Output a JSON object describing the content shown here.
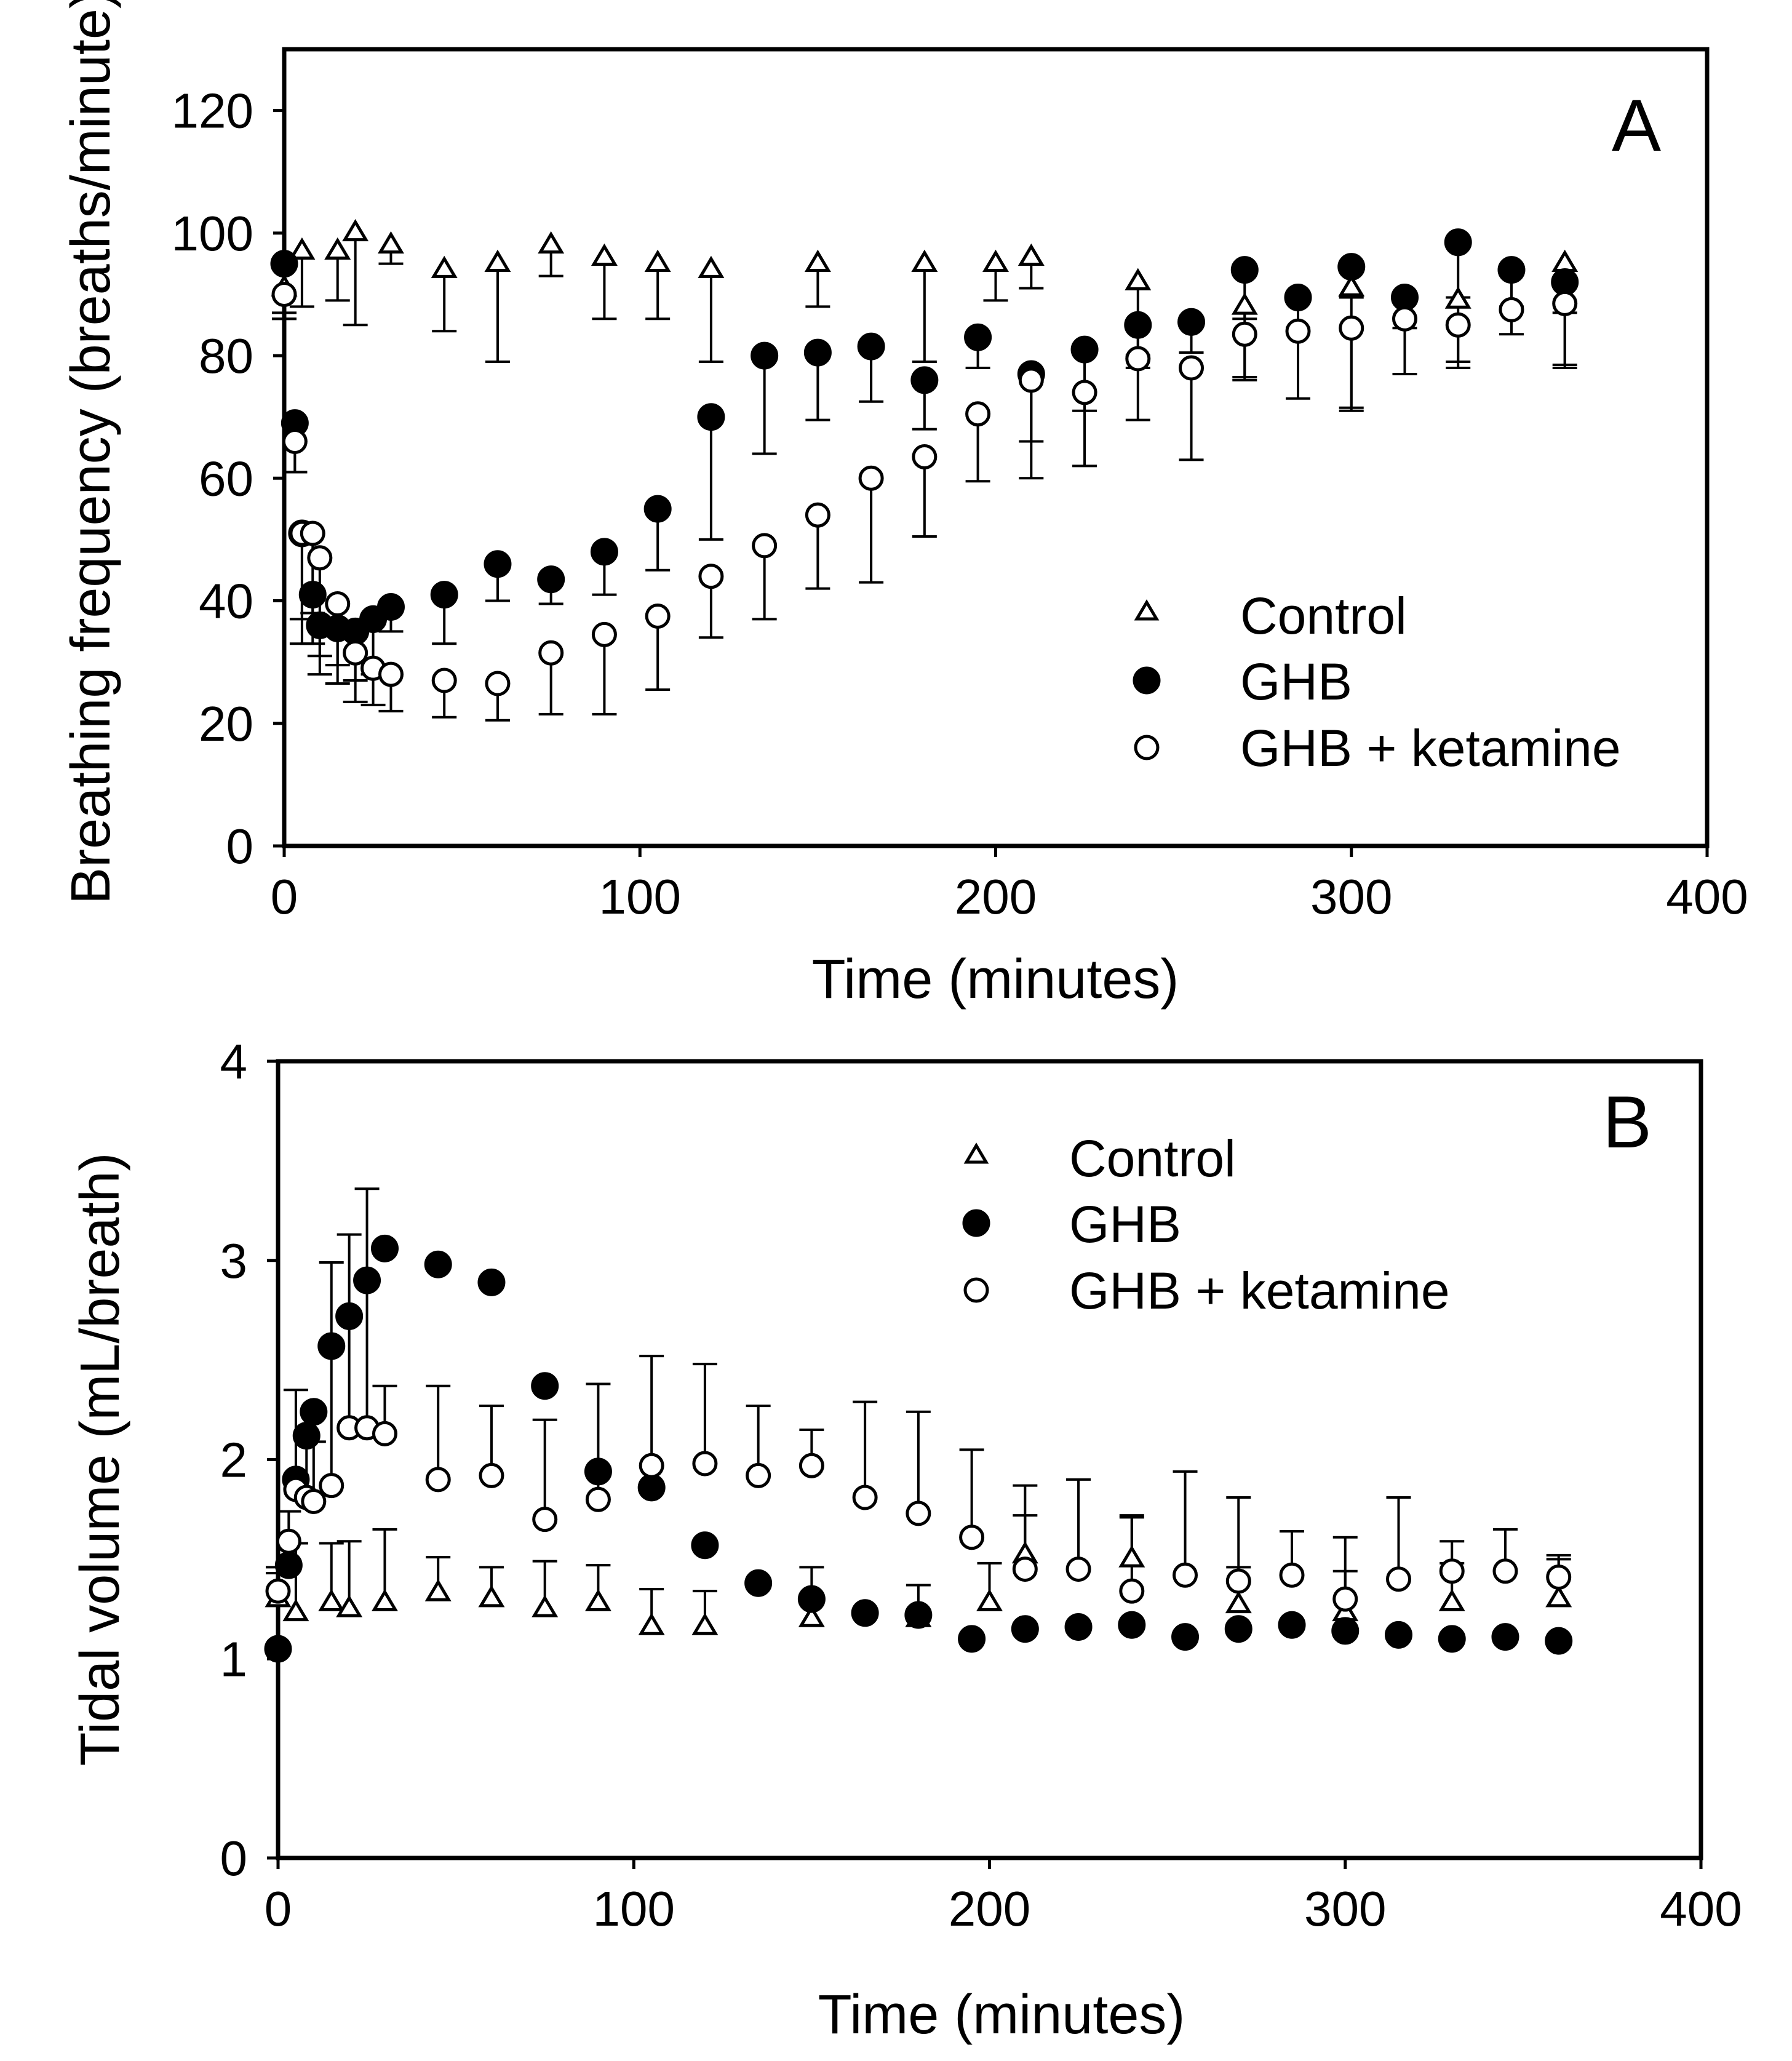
{
  "chart_data": [
    {
      "type": "scatter",
      "panel_label": "A",
      "xlabel": "Time (minutes)",
      "ylabel": "Breathing frequency (breaths/minute)",
      "xlim": [
        0,
        400
      ],
      "ylim": [
        0,
        130
      ],
      "xticks": [
        0,
        100,
        200,
        300,
        400
      ],
      "yticks": [
        0,
        20,
        40,
        60,
        80,
        100,
        120
      ],
      "grid": false,
      "legend_position": "lower-right",
      "series": [
        {
          "name": "Control",
          "marker": "open-triangle",
          "error_dir": "down",
          "x": [
            0,
            5,
            15,
            20,
            30,
            45,
            60,
            75,
            90,
            105,
            120,
            150,
            180,
            200,
            210,
            240,
            270,
            300,
            330,
            360
          ],
          "y": [
            91,
            97,
            97,
            100,
            98,
            94,
            95,
            98,
            96,
            95,
            94,
            95,
            95,
            95,
            96,
            92,
            88,
            91,
            89,
            95
          ],
          "err": [
            5,
            9,
            8,
            15,
            3,
            10,
            16,
            5,
            10,
            9,
            15,
            7,
            16,
            6,
            5,
            14,
            12,
            20,
            11,
            17
          ]
        },
        {
          "name": "GHB",
          "marker": "filled-circle",
          "error_dir": "down",
          "x": [
            0,
            3,
            5,
            8,
            10,
            15,
            20,
            25,
            30,
            45,
            60,
            75,
            90,
            105,
            120,
            135,
            150,
            165,
            180,
            195,
            210,
            225,
            240,
            255,
            270,
            285,
            300,
            315,
            330,
            345,
            360
          ],
          "y": [
            95,
            69,
            51,
            41,
            36,
            35.5,
            35,
            37,
            39,
            41,
            46,
            43.5,
            48,
            55,
            70,
            80,
            80.5,
            81.5,
            76,
            83,
            77,
            81,
            85,
            85.5,
            94,
            89.5,
            94.5,
            89.5,
            98.5,
            94,
            92
          ],
          "err": [
            8,
            8,
            18,
            8,
            8,
            6,
            8,
            9,
            4,
            8,
            6,
            4,
            7,
            10,
            20,
            16,
            11,
            9,
            8,
            5,
            11,
            10,
            5,
            5,
            8,
            5,
            5,
            5,
            9,
            6,
            5
          ]
        },
        {
          "name": "GHB + ketamine",
          "marker": "open-circle",
          "error_dir": "down",
          "x": [
            0,
            3,
            5,
            8,
            10,
            15,
            20,
            25,
            30,
            45,
            60,
            75,
            90,
            105,
            120,
            135,
            150,
            165,
            180,
            195,
            210,
            225,
            240,
            255,
            270,
            285,
            300,
            315,
            330,
            345,
            360
          ],
          "y": [
            90,
            66,
            51,
            51,
            47,
            39.5,
            31.5,
            29,
            28,
            27,
            26.5,
            31.5,
            34.5,
            37.5,
            44,
            49,
            54,
            60,
            63.5,
            70.5,
            76,
            74,
            79.5,
            78,
            83.5,
            84,
            84.5,
            86,
            85,
            87.5,
            88.5
          ],
          "err": [
            4,
            5,
            14,
            13,
            16,
            13,
            8,
            6,
            6,
            6,
            6,
            10,
            13,
            12,
            10,
            12,
            12,
            17,
            13,
            11,
            16,
            12,
            10,
            15,
            7,
            11,
            13,
            9,
            6,
            4,
            10
          ]
        }
      ]
    },
    {
      "type": "scatter",
      "panel_label": "B",
      "xlabel": "Time (minutes)",
      "ylabel": "Tidal volume (mL/breath)",
      "xlim": [
        0,
        400
      ],
      "ylim": [
        0,
        4
      ],
      "xticks": [
        0,
        100,
        200,
        300,
        400
      ],
      "yticks": [
        0,
        1,
        2,
        3,
        4
      ],
      "grid": false,
      "legend_position": "top-center",
      "series": [
        {
          "name": "Control",
          "marker": "open-triangle",
          "error_dir": "up",
          "x": [
            0,
            5,
            15,
            20,
            30,
            45,
            60,
            75,
            90,
            105,
            120,
            150,
            180,
            200,
            210,
            240,
            270,
            300,
            330,
            360
          ],
          "y": [
            1.3,
            1.23,
            1.28,
            1.25,
            1.28,
            1.33,
            1.3,
            1.25,
            1.28,
            1.16,
            1.16,
            1.2,
            1.2,
            1.28,
            1.52,
            1.5,
            1.27,
            1.23,
            1.28,
            1.3
          ],
          "err": [
            0.13,
            0.35,
            0.3,
            0.34,
            0.37,
            0.18,
            0.16,
            0.24,
            0.19,
            0.19,
            0.18,
            0.26,
            0.17,
            0.2,
            0.2,
            0.21,
            0.19,
            0.21,
            0.2,
            0.22
          ]
        },
        {
          "name": "GHB",
          "marker": "filled-circle",
          "error_dir": "up",
          "x": [
            0,
            3,
            5,
            8,
            10,
            15,
            20,
            25,
            30,
            45,
            60,
            75,
            90,
            105,
            120,
            135,
            150,
            165,
            180,
            195,
            210,
            225,
            240,
            255,
            270,
            285,
            300,
            315,
            330,
            345,
            360
          ],
          "y": [
            1.05,
            1.47,
            1.9,
            2.12,
            2.24,
            2.57,
            2.72,
            2.9,
            3.06,
            2.98,
            2.89,
            2.37,
            1.94,
            1.86,
            1.57,
            1.38,
            1.3,
            1.23,
            1.22,
            1.1,
            1.15,
            1.16,
            1.17,
            1.11,
            1.15,
            1.17,
            1.14,
            1.12,
            1.1,
            1.11,
            1.09
          ]
        },
        {
          "name": "GHB + ketamine",
          "marker": "open-circle",
          "error_dir": "up",
          "x": [
            0,
            3,
            5,
            8,
            10,
            15,
            20,
            25,
            30,
            45,
            60,
            75,
            90,
            105,
            120,
            135,
            150,
            165,
            180,
            195,
            210,
            225,
            240,
            255,
            270,
            285,
            300,
            315,
            330,
            345,
            360
          ],
          "y": [
            1.34,
            1.59,
            1.85,
            1.81,
            1.79,
            1.87,
            2.16,
            2.16,
            2.13,
            1.9,
            1.92,
            1.7,
            1.8,
            1.97,
            1.98,
            1.92,
            1.97,
            1.81,
            1.73,
            1.61,
            1.45,
            1.45,
            1.34,
            1.42,
            1.39,
            1.42,
            1.3,
            1.4,
            1.44,
            1.44,
            1.41
          ],
          "err": [
            0.12,
            0.15,
            0.5,
            0.3,
            0.3,
            1.12,
            0.97,
            1.2,
            0.24,
            0.47,
            0.35,
            0.5,
            0.58,
            0.55,
            0.5,
            0.35,
            0.18,
            0.48,
            0.51,
            0.44,
            0.42,
            0.45,
            0.38,
            0.52,
            0.42,
            0.22,
            0.31,
            0.41,
            0.15,
            0.21,
            0.09
          ]
        }
      ]
    }
  ]
}
